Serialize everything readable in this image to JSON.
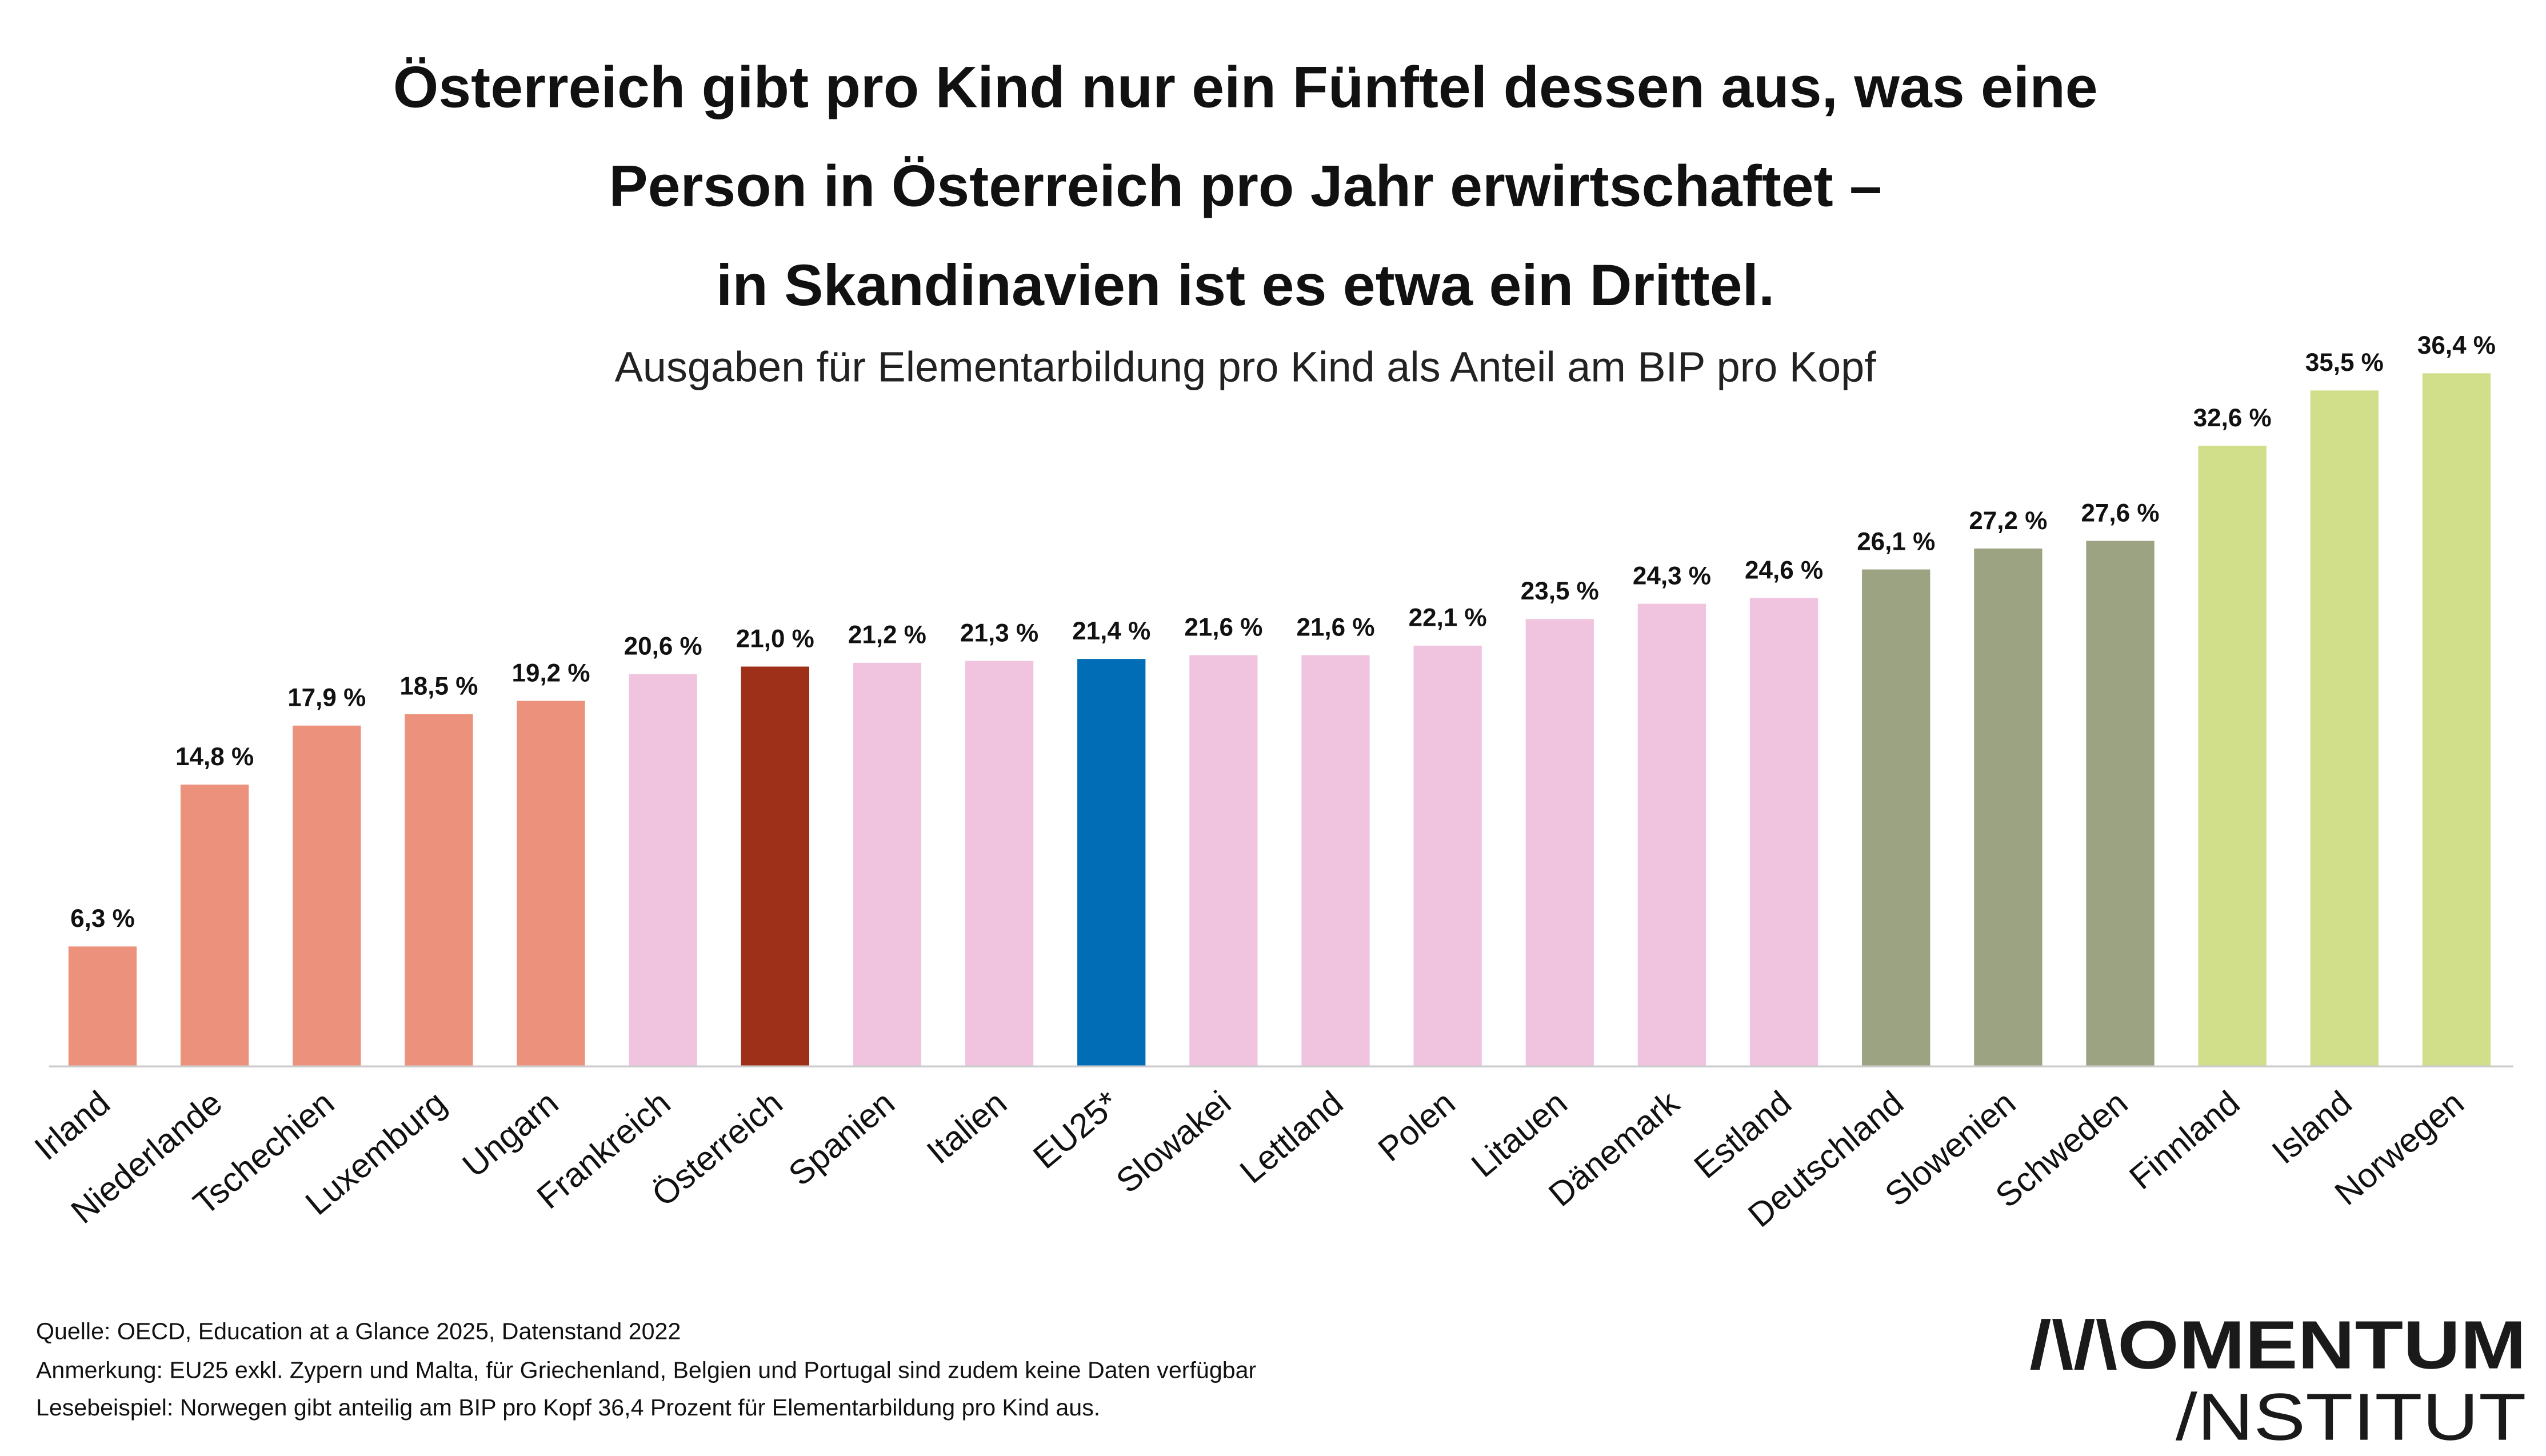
{
  "chart_data": {
    "type": "bar",
    "title_lines": [
      "Österreich gibt pro Kind nur ein Fünftel dessen aus, was eine",
      "Person in Österreich pro Jahr erwirtschaftet –",
      "in Skandinavien ist es etwa ein Drittel."
    ],
    "subtitle": "Ausgaben für Elementarbildung pro Kind als Anteil am BIP pro Kopf",
    "categories": [
      "Irland",
      "Niederlande",
      "Tschechien",
      "Luxemburg",
      "Ungarn",
      "Frankreich",
      "Österreich",
      "Spanien",
      "Italien",
      "EU25*",
      "Slowakei",
      "Lettland",
      "Polen",
      "Litauen",
      "Dänemark",
      "Estland",
      "Deutschland",
      "Slowenien",
      "Schweden",
      "Finnland",
      "Island",
      "Norwegen"
    ],
    "values": [
      6.3,
      14.8,
      17.9,
      18.5,
      19.2,
      20.6,
      21.0,
      21.2,
      21.3,
      21.4,
      21.6,
      21.6,
      22.1,
      23.5,
      24.3,
      24.6,
      26.1,
      27.2,
      27.6,
      32.6,
      35.5,
      36.4
    ],
    "value_labels": [
      "6,3 %",
      "14,8 %",
      "17,9 %",
      "18,5 %",
      "19,2 %",
      "20,6 %",
      "21,0 %",
      "21,2 %",
      "21,3 %",
      "21,4 %",
      "21,6 %",
      "21,6 %",
      "22,1 %",
      "23,5 %",
      "24,3 %",
      "24,6 %",
      "26,1 %",
      "27,2 %",
      "27,6 %",
      "32,6 %",
      "35,5 %",
      "36,4 %"
    ],
    "color_groups": [
      "salmon",
      "salmon",
      "salmon",
      "salmon",
      "salmon",
      "pink",
      "austria",
      "pink",
      "pink",
      "eu",
      "pink",
      "pink",
      "pink",
      "pink",
      "pink",
      "pink",
      "olive",
      "olive",
      "olive",
      "green",
      "green",
      "green"
    ],
    "colors": {
      "salmon": "#EC917B",
      "pink": "#F0C4DF",
      "austria": "#9E2F18",
      "eu": "#006DB6",
      "olive": "#9CA383",
      "green": "#D1DE8A"
    },
    "ylim": [
      0,
      37
    ],
    "xlabel": "",
    "ylabel": "",
    "grid": false,
    "y_axis_visible": false
  },
  "footer": {
    "source": "Quelle: OECD, Education at a Glance 2025, Datenstand 2022",
    "note": "Anmerkung: EU25 exkl. Zypern und Malta, für Griechenland, Belgien und Portugal sind zudem keine Daten verfügbar",
    "example": "Lesebeispiel: Norwegen gibt anteilig am BIP pro Kopf 36,4 Prozent  für Elementarbildung  pro Kind aus."
  },
  "logo": {
    "line1": "/\\/\\OMENTUM",
    "line2": "/NSTITUT"
  }
}
